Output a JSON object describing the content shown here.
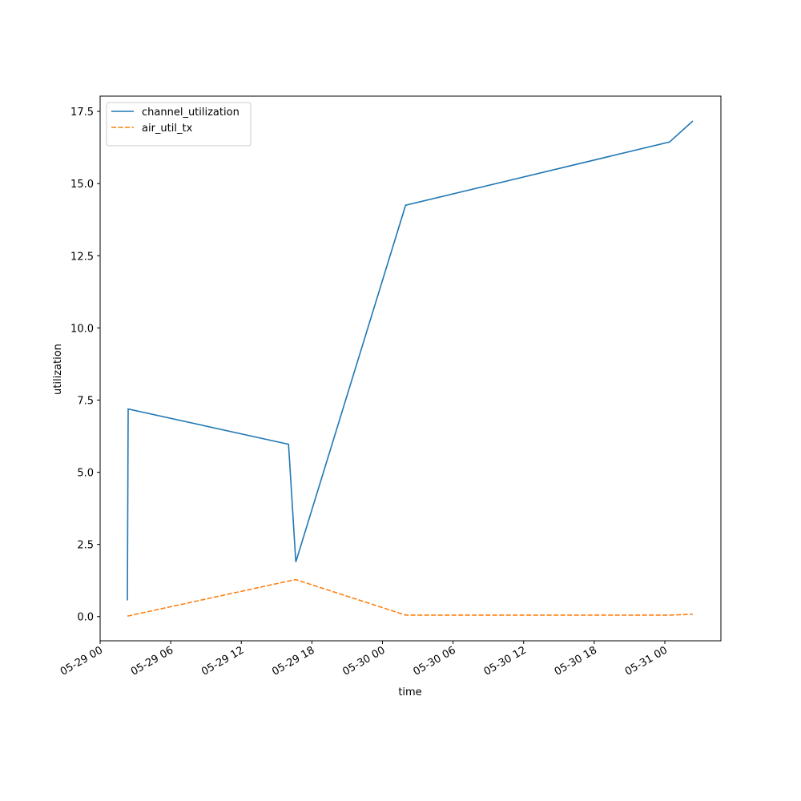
{
  "chart_data": {
    "type": "line",
    "xlabel": "time",
    "ylabel": "utilization",
    "x": [
      "05-29 02:19",
      "05-29 02:23",
      "05-29 16:01",
      "05-29 16:38",
      "05-30 01:58",
      "05-31 00:24",
      "05-31 02:23"
    ],
    "series": [
      {
        "name": "channel_utilization",
        "color": "#1f77b4",
        "dash": "solid",
        "values": [
          0.56,
          7.19,
          5.97,
          1.89,
          14.25,
          16.44,
          17.17
        ]
      },
      {
        "name": "air_util_tx",
        "color": "#ff7f0e",
        "dash": "dashed",
        "values": [
          0.02,
          0.02,
          1.23,
          1.28,
          0.05,
          0.05,
          0.08
        ]
      }
    ],
    "xlim": [
      "05-29 00:00",
      "05-31 04:46"
    ],
    "xticks": [
      "05-29 00",
      "05-29 06",
      "05-29 12",
      "05-29 18",
      "05-30 00",
      "05-30 06",
      "05-30 12",
      "05-30 18",
      "05-31 00"
    ],
    "ylim": [
      -0.84,
      18.03
    ],
    "yticks": [
      {
        "value": 0,
        "label": "0.0"
      },
      2.5,
      {
        "value": 5,
        "label": "5.0"
      },
      7.5,
      {
        "value": 10,
        "label": "10.0"
      },
      12.5,
      {
        "value": 15,
        "label": "15.0"
      },
      17.5
    ],
    "legend": "upper left",
    "grid": false
  }
}
